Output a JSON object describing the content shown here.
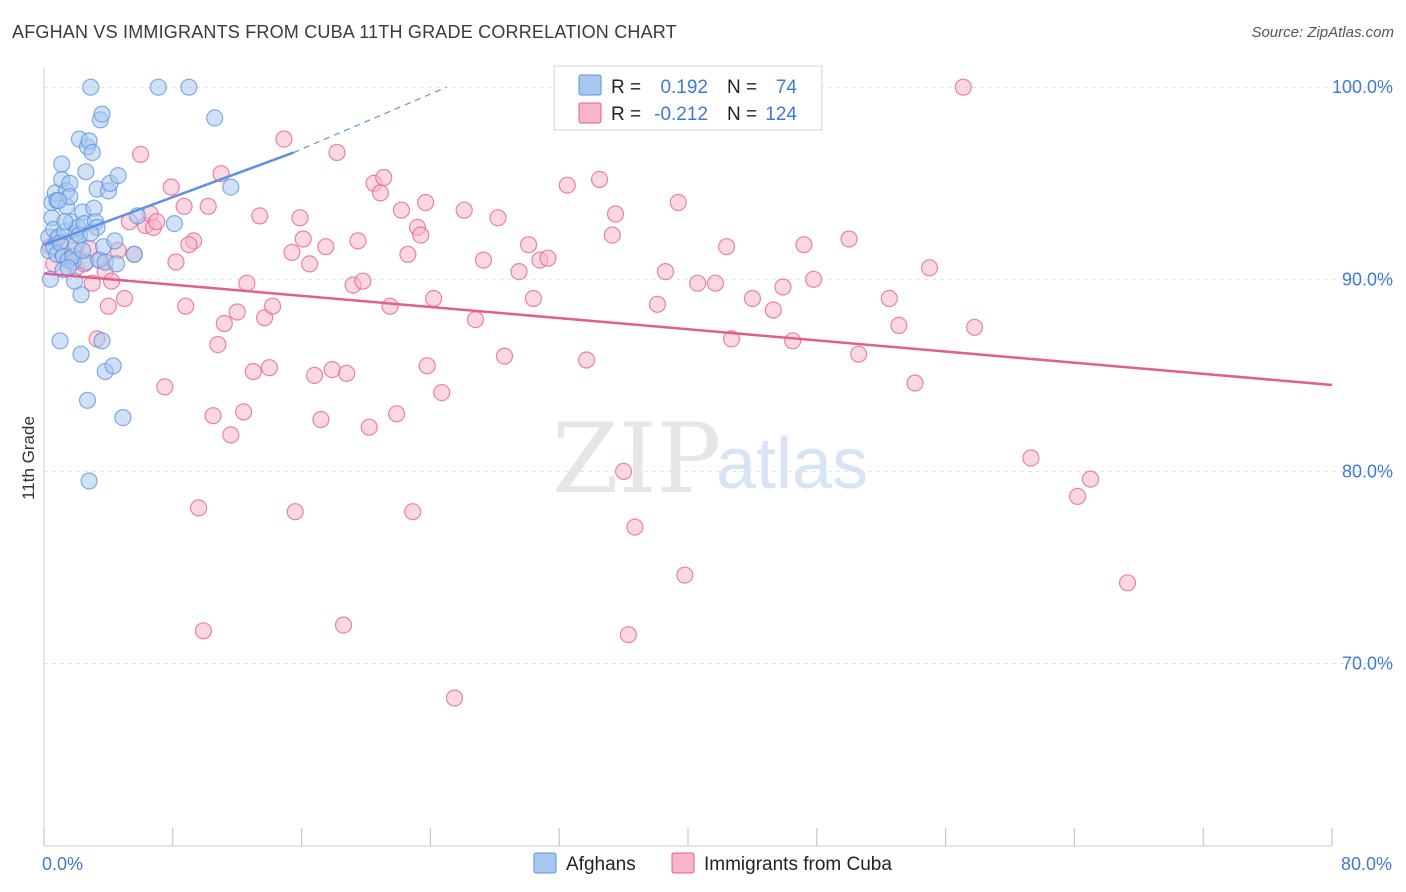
{
  "header": {
    "title": "AFGHAN VS IMMIGRANTS FROM CUBA 11TH GRADE CORRELATION CHART",
    "source": "Source: ZipAtlas.com"
  },
  "watermark": {
    "zip": "ZIP",
    "atlas": "atlas"
  },
  "legend": {
    "rows": [
      {
        "r_label": "R =",
        "r_value": "0.192",
        "n_label": "N =",
        "n_value": "74",
        "color": "#a9c8f0"
      },
      {
        "r_label": "R =",
        "r_value": "-0.212",
        "n_label": "N =",
        "n_value": "124",
        "color": "#f7b6c8"
      }
    ]
  },
  "bottom_legend": [
    {
      "label": "Afghans",
      "color": "#a9c8f0"
    },
    {
      "label": "Immigrants from Cuba",
      "color": "#f7b6c8"
    }
  ],
  "chart_data": {
    "type": "scatter",
    "title": "AFGHAN VS IMMIGRANTS FROM CUBA 11TH GRADE CORRELATION CHART",
    "xlabel": "",
    "ylabel": "11th Grade",
    "xlim": [
      0,
      80
    ],
    "ylim": [
      60.5,
      101
    ],
    "x_tick_labels": [
      {
        "value": 0,
        "label": "0.0%"
      },
      {
        "value": 80,
        "label": "80.0%"
      }
    ],
    "x_minor_ticks": [
      0,
      8,
      16,
      24,
      32,
      40,
      48,
      56,
      64,
      72,
      80
    ],
    "y_ticks": [
      {
        "value": 100,
        "label": "100.0%"
      },
      {
        "value": 90,
        "label": "90.0%"
      },
      {
        "value": 80,
        "label": "80.0%"
      },
      {
        "value": 70,
        "label": "70.0%"
      }
    ],
    "grid": true,
    "legend_position": "top-center",
    "series": [
      {
        "name": "Afghans",
        "color": "#5b93de",
        "fill": "#a9c8f0",
        "trend": {
          "x": [
            0,
            15.5
          ],
          "y": [
            91.8,
            96.6
          ],
          "dashed_to": {
            "x": 25,
            "y": 100
          }
        },
        "points": [
          [
            0.3,
            91.5
          ],
          [
            0.3,
            92.2
          ],
          [
            0.4,
            90.0
          ],
          [
            0.5,
            93.2
          ],
          [
            0.5,
            94.0
          ],
          [
            0.6,
            92.6
          ],
          [
            0.6,
            91.7
          ],
          [
            0.7,
            94.5
          ],
          [
            0.8,
            94.1
          ],
          [
            0.8,
            91.3
          ],
          [
            0.9,
            92.2
          ],
          [
            1.0,
            86.8
          ],
          [
            1.0,
            91.9
          ],
          [
            1.1,
            95.2
          ],
          [
            1.1,
            96.0
          ],
          [
            1.2,
            91.2
          ],
          [
            1.2,
            90.5
          ],
          [
            1.3,
            92.5
          ],
          [
            1.4,
            93.8
          ],
          [
            1.4,
            94.6
          ],
          [
            1.5,
            91.0
          ],
          [
            1.6,
            95.0
          ],
          [
            1.6,
            94.3
          ],
          [
            1.7,
            93.0
          ],
          [
            1.8,
            90.9
          ],
          [
            1.8,
            91.2
          ],
          [
            2.0,
            92.4
          ],
          [
            2.0,
            91.8
          ],
          [
            2.1,
            92.7
          ],
          [
            2.2,
            97.3
          ],
          [
            2.2,
            92.3
          ],
          [
            2.3,
            86.1
          ],
          [
            2.3,
            89.2
          ],
          [
            2.4,
            93.5
          ],
          [
            2.5,
            92.9
          ],
          [
            2.6,
            95.6
          ],
          [
            2.6,
            90.9
          ],
          [
            2.7,
            83.7
          ],
          [
            2.7,
            96.9
          ],
          [
            2.8,
            97.2
          ],
          [
            2.8,
            79.5
          ],
          [
            2.9,
            100.0
          ],
          [
            3.0,
            96.6
          ],
          [
            3.1,
            93.7
          ],
          [
            3.2,
            93.0
          ],
          [
            3.3,
            92.7
          ],
          [
            3.3,
            94.7
          ],
          [
            3.4,
            91.0
          ],
          [
            3.5,
            98.3
          ],
          [
            3.6,
            98.6
          ],
          [
            3.6,
            86.8
          ],
          [
            3.8,
            90.9
          ],
          [
            3.8,
            85.2
          ],
          [
            4.0,
            94.6
          ],
          [
            4.1,
            95.0
          ],
          [
            4.3,
            85.5
          ],
          [
            4.5,
            90.8
          ],
          [
            4.6,
            95.4
          ],
          [
            4.9,
            82.8
          ],
          [
            5.6,
            91.3
          ],
          [
            5.8,
            93.3
          ],
          [
            7.1,
            100.0
          ],
          [
            8.1,
            92.9
          ],
          [
            9.0,
            100.0
          ],
          [
            10.6,
            98.4
          ],
          [
            11.6,
            94.8
          ],
          [
            1.3,
            93.0
          ],
          [
            2.4,
            91.5
          ],
          [
            1.9,
            89.9
          ],
          [
            0.9,
            94.1
          ],
          [
            3.7,
            91.7
          ],
          [
            4.4,
            92.0
          ],
          [
            1.5,
            90.6
          ],
          [
            2.9,
            92.4
          ]
        ]
      },
      {
        "name": "Immigrants from Cuba",
        "color": "#e35d8f",
        "fill": "#f7b6c8",
        "trend": {
          "x": [
            0,
            80
          ],
          "y": [
            90.3,
            84.5
          ]
        },
        "points": [
          [
            0.4,
            91.7
          ],
          [
            0.6,
            90.8
          ],
          [
            0.8,
            92.1
          ],
          [
            1.0,
            91.9
          ],
          [
            1.2,
            91.2
          ],
          [
            1.5,
            91.0
          ],
          [
            1.8,
            91.5
          ],
          [
            2.0,
            90.6
          ],
          [
            2.5,
            90.8
          ],
          [
            2.8,
            91.6
          ],
          [
            3.0,
            89.8
          ],
          [
            3.3,
            86.9
          ],
          [
            3.5,
            91.0
          ],
          [
            3.8,
            90.4
          ],
          [
            4.0,
            88.6
          ],
          [
            4.2,
            89.9
          ],
          [
            4.6,
            91.5
          ],
          [
            5.0,
            89.0
          ],
          [
            5.3,
            93.0
          ],
          [
            5.6,
            91.3
          ],
          [
            6.0,
            96.5
          ],
          [
            6.3,
            92.8
          ],
          [
            6.6,
            93.4
          ],
          [
            6.8,
            92.7
          ],
          [
            7.0,
            93.0
          ],
          [
            7.5,
            84.4
          ],
          [
            7.9,
            94.8
          ],
          [
            8.2,
            90.9
          ],
          [
            8.7,
            93.8
          ],
          [
            8.8,
            88.6
          ],
          [
            9.3,
            92.0
          ],
          [
            9.6,
            78.1
          ],
          [
            9.9,
            71.7
          ],
          [
            10.2,
            93.8
          ],
          [
            10.5,
            82.9
          ],
          [
            10.8,
            86.6
          ],
          [
            11.0,
            95.5
          ],
          [
            11.2,
            87.7
          ],
          [
            11.6,
            81.9
          ],
          [
            12.0,
            88.3
          ],
          [
            12.4,
            83.1
          ],
          [
            12.6,
            89.8
          ],
          [
            13.0,
            85.2
          ],
          [
            13.4,
            93.3
          ],
          [
            13.7,
            88.0
          ],
          [
            14.0,
            85.4
          ],
          [
            14.2,
            88.6
          ],
          [
            14.9,
            97.3
          ],
          [
            15.4,
            91.4
          ],
          [
            15.6,
            77.9
          ],
          [
            15.9,
            93.2
          ],
          [
            16.1,
            92.1
          ],
          [
            16.5,
            90.8
          ],
          [
            16.8,
            85.0
          ],
          [
            17.2,
            82.7
          ],
          [
            17.5,
            91.7
          ],
          [
            17.9,
            85.3
          ],
          [
            18.2,
            96.6
          ],
          [
            18.6,
            72.0
          ],
          [
            18.8,
            85.1
          ],
          [
            19.2,
            89.7
          ],
          [
            19.5,
            92.0
          ],
          [
            19.8,
            89.9
          ],
          [
            20.2,
            82.3
          ],
          [
            20.5,
            95.0
          ],
          [
            20.9,
            94.5
          ],
          [
            21.1,
            95.3
          ],
          [
            21.5,
            88.6
          ],
          [
            21.9,
            83.0
          ],
          [
            22.2,
            93.6
          ],
          [
            22.6,
            91.3
          ],
          [
            22.9,
            77.9
          ],
          [
            23.2,
            92.7
          ],
          [
            23.4,
            92.3
          ],
          [
            23.7,
            94.0
          ],
          [
            23.8,
            85.5
          ],
          [
            24.2,
            89.0
          ],
          [
            24.7,
            84.1
          ],
          [
            25.5,
            68.2
          ],
          [
            26.1,
            93.6
          ],
          [
            26.8,
            87.9
          ],
          [
            27.3,
            91.0
          ],
          [
            28.2,
            93.2
          ],
          [
            28.6,
            86.0
          ],
          [
            29.5,
            90.4
          ],
          [
            30.1,
            91.8
          ],
          [
            30.4,
            89.0
          ],
          [
            30.8,
            91.0
          ],
          [
            31.3,
            91.1
          ],
          [
            32.5,
            94.9
          ],
          [
            33.7,
            85.8
          ],
          [
            34.5,
            95.2
          ],
          [
            35.3,
            92.3
          ],
          [
            35.5,
            93.4
          ],
          [
            36.0,
            80.0
          ],
          [
            36.3,
            71.5
          ],
          [
            36.7,
            77.1
          ],
          [
            38.1,
            88.7
          ],
          [
            38.6,
            90.4
          ],
          [
            39.4,
            94.0
          ],
          [
            39.8,
            74.6
          ],
          [
            40.6,
            89.8
          ],
          [
            41.7,
            89.8
          ],
          [
            42.4,
            91.7
          ],
          [
            42.7,
            86.9
          ],
          [
            44.0,
            89.0
          ],
          [
            45.3,
            88.4
          ],
          [
            45.9,
            89.6
          ],
          [
            46.5,
            86.8
          ],
          [
            47.2,
            91.8
          ],
          [
            47.8,
            90.0
          ],
          [
            50.0,
            92.1
          ],
          [
            50.6,
            86.1
          ],
          [
            52.5,
            89.0
          ],
          [
            53.1,
            87.6
          ],
          [
            54.1,
            84.6
          ],
          [
            55.0,
            90.6
          ],
          [
            57.1,
            100.0
          ],
          [
            57.8,
            87.5
          ],
          [
            61.3,
            80.7
          ],
          [
            64.2,
            78.7
          ],
          [
            65.0,
            79.6
          ],
          [
            67.3,
            74.2
          ],
          [
            9.0,
            91.8
          ]
        ]
      }
    ]
  }
}
